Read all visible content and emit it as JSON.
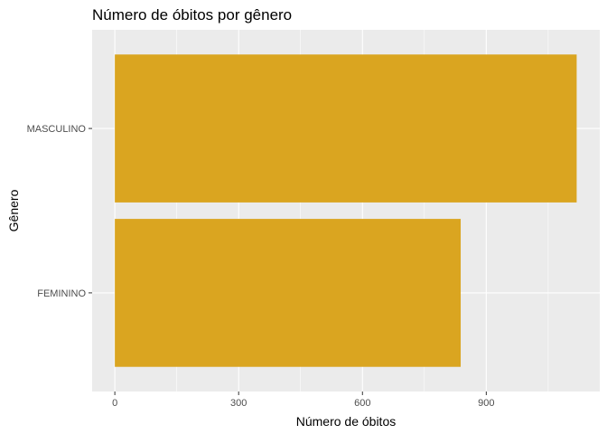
{
  "chart_data": {
    "type": "bar",
    "orientation": "horizontal",
    "title": "Número de óbitos por gênero",
    "xlabel": "Número de óbitos",
    "ylabel": "Gênero",
    "categories": [
      "FEMININO",
      "MASCULINO"
    ],
    "values": [
      838,
      1119
    ],
    "xlim": [
      -55,
      1175
    ],
    "xticks": [
      0,
      300,
      600,
      900
    ],
    "grid": true,
    "legend": "none",
    "colors": {
      "bar": "#DAA520",
      "panel_background": "#EBEBEB",
      "grid_major": "#FFFFFF",
      "tick_text": "#4D4D4D"
    }
  }
}
